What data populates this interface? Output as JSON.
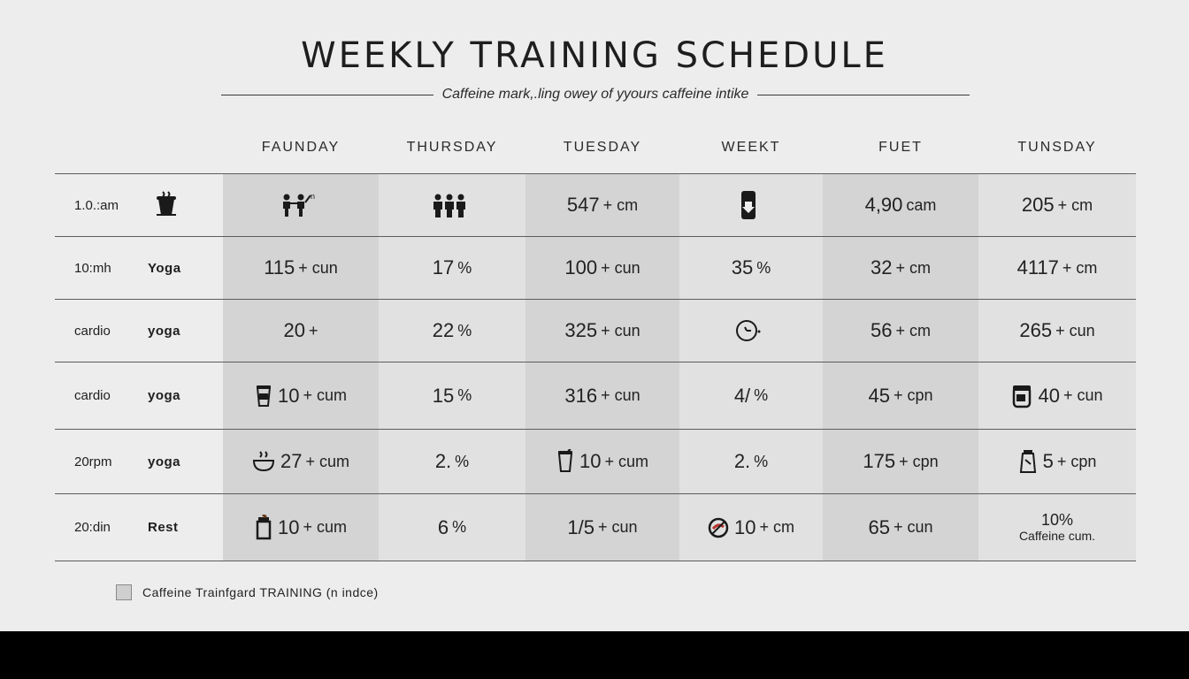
{
  "title": "WEEKLY TRAINING SCHEDULE",
  "subtitle": "Caffeine mark,.ling owey of yyours caffeine intike",
  "days": [
    "FAUNDAY",
    "THURSDAY",
    "TUESDAY",
    "WEEKT",
    "FUET",
    "TUNSDAY"
  ],
  "rows": [
    {
      "time": "1.0.:am",
      "activity": "",
      "time_icon": "coffee-cup-icon",
      "cells": [
        {
          "icon": "people-icon",
          "value": "",
          "unit": ""
        },
        {
          "icon": "group-icon",
          "value": "",
          "unit": ""
        },
        {
          "value": "547",
          "unit": "+ cm"
        },
        {
          "icon": "bottle-icon",
          "value": "",
          "unit": ""
        },
        {
          "value": "4,90",
          "unit": "cam"
        },
        {
          "value": "205",
          "unit": "+ cm"
        }
      ]
    },
    {
      "time": "10:mh",
      "activity": "Yoga",
      "cells": [
        {
          "value": "115",
          "unit": "+ cun"
        },
        {
          "value": "17",
          "unit": "%"
        },
        {
          "value": "100",
          "unit": "+ cun"
        },
        {
          "value": "35",
          "unit": "%"
        },
        {
          "value": "32",
          "unit": "+ cm"
        },
        {
          "value": "4117",
          "unit": "+ cm"
        }
      ]
    },
    {
      "time": "cardio",
      "activity": "yoga",
      "cells": [
        {
          "value": "20",
          "unit": "+"
        },
        {
          "value": "22",
          "unit": "%"
        },
        {
          "value": "325",
          "unit": "+ cun"
        },
        {
          "icon": "clock-icon",
          "value": "",
          "unit": ""
        },
        {
          "value": "56",
          "unit": "+ cm"
        },
        {
          "value": "265",
          "unit": "+ cun"
        }
      ]
    },
    {
      "time": "cardio",
      "activity": "yoga",
      "cells": [
        {
          "icon": "cup-icon",
          "value": "10",
          "unit": "+ cum"
        },
        {
          "value": "15",
          "unit": "%"
        },
        {
          "value": "316",
          "unit": "+ cun"
        },
        {
          "value": "4/",
          "unit": "%"
        },
        {
          "value": "45",
          "unit": "+ cpn"
        },
        {
          "icon": "jar-icon",
          "value": "40",
          "unit": "+ cun"
        }
      ]
    },
    {
      "time": "20rpm",
      "activity": "yoga",
      "cells": [
        {
          "icon": "steaming-bowl-icon",
          "value": "27",
          "unit": "+ cum"
        },
        {
          "value": "2.",
          "unit": "%"
        },
        {
          "icon": "tumbler-icon",
          "value": "10",
          "unit": "+ cum"
        },
        {
          "value": "2.",
          "unit": "%"
        },
        {
          "value": "175",
          "unit": "+ cpn"
        },
        {
          "icon": "flask-icon",
          "value": "5",
          "unit": "+ cpn"
        }
      ]
    },
    {
      "time": "20:din",
      "activity": "Rest",
      "cells": [
        {
          "icon": "travel-mug-icon",
          "value": "10",
          "unit": "+ cum"
        },
        {
          "value": "6",
          "unit": "%"
        },
        {
          "value": "1/5",
          "unit": "+ cun"
        },
        {
          "icon": "no-caffeine-icon",
          "value": "10",
          "unit": "+ cm"
        },
        {
          "value": "65",
          "unit": "+ cun"
        },
        {
          "stacked": true,
          "value": "10%",
          "unit": "Caffeine cum."
        }
      ]
    }
  ],
  "legend": {
    "label": "Caffeine Trainfgard TRAINING (n indce)"
  },
  "colors": {
    "shade_dark": "#d4d4d4",
    "shade_light": "#e1e1e1",
    "background": "#eeeded"
  }
}
